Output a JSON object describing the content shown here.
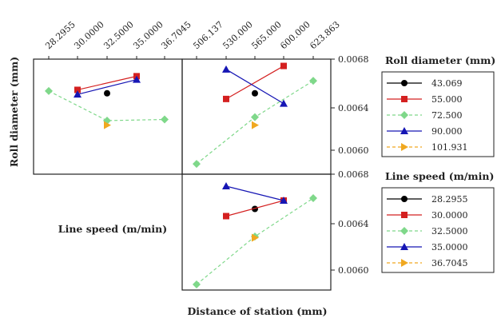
{
  "chart_data": {
    "type": "line",
    "title": "",
    "panel_frame_color": "#222222",
    "left_axis_label": "Roll diameter (mm)",
    "left_panel_label": "Line speed (m/min)",
    "bottom_axis_label": "Distance of station (mm)",
    "top_left_ticks": [
      "28.2955",
      "30.0000",
      "32.5000",
      "35.0000",
      "36.7045"
    ],
    "top_right_ticks": [
      "506.137",
      "530.000",
      "565.000",
      "600.000",
      "623.863"
    ],
    "right_ticks_upper": [
      "0.0068",
      "0.0064",
      "0.0060"
    ],
    "right_ticks_lower": [
      "0.0068",
      "0.0064",
      "0.0060"
    ],
    "x_line_speed": [
      28.2955,
      30.0,
      32.5,
      35.0,
      36.7045
    ],
    "x_distance": [
      506.137,
      530.0,
      565.0,
      600.0,
      623.863
    ],
    "ylim": [
      0.0058,
      0.0068
    ],
    "legend_roll": {
      "title": "Roll diameter (mm)",
      "entries": [
        {
          "label": "43.069",
          "color": "#000000",
          "marker": "circle",
          "dash": "solid"
        },
        {
          "label": "55.000",
          "color": "#d42020",
          "marker": "square",
          "dash": "solid"
        },
        {
          "label": "72.500",
          "color": "#7fd88a",
          "marker": "diamond",
          "dash": "dashed"
        },
        {
          "label": "90.000",
          "color": "#1616b4",
          "marker": "triangle-up",
          "dash": "solid"
        },
        {
          "label": "101.931",
          "color": "#f0a820",
          "marker": "triangle-right",
          "dash": "dashed"
        }
      ]
    },
    "legend_speed": {
      "title": "Line speed (m/min)",
      "entries": [
        {
          "label": "28.2955",
          "color": "#000000",
          "marker": "circle",
          "dash": "solid"
        },
        {
          "label": "30.0000",
          "color": "#d42020",
          "marker": "square",
          "dash": "solid"
        },
        {
          "label": "32.5000",
          "color": "#7fd88a",
          "marker": "diamond",
          "dash": "dashed"
        },
        {
          "label": "35.0000",
          "color": "#1616b4",
          "marker": "triangle-up",
          "dash": "solid"
        },
        {
          "label": "36.7045",
          "color": "#f0a820",
          "marker": "triangle-right",
          "dash": "dashed"
        }
      ]
    },
    "panels": [
      {
        "name": "roll-diameter-vs-line-speed",
        "x": "line_speed",
        "series": [
          {
            "legend": "roll",
            "index": 0,
            "points": [
              [
                32.5,
                0.0065
              ]
            ]
          },
          {
            "legend": "roll",
            "index": 1,
            "points": [
              [
                30.0,
                0.00653
              ],
              [
                35.0,
                0.00665
              ]
            ]
          },
          {
            "legend": "roll",
            "index": 2,
            "points": [
              [
                28.2955,
                0.00652
              ],
              [
                32.5,
                0.00626
              ],
              [
                36.7045,
                0.00627
              ]
            ]
          },
          {
            "legend": "roll",
            "index": 3,
            "points": [
              [
                30.0,
                0.00649
              ],
              [
                35.0,
                0.00662
              ]
            ]
          },
          {
            "legend": "roll",
            "index": 4,
            "points": [
              [
                32.5,
                0.00622
              ]
            ]
          }
        ]
      },
      {
        "name": "roll-diameter-vs-distance",
        "x": "distance",
        "series": [
          {
            "legend": "roll",
            "index": 0,
            "points": [
              [
                565.0,
                0.0065
              ]
            ]
          },
          {
            "legend": "roll",
            "index": 1,
            "points": [
              [
                530.0,
                0.00645
              ],
              [
                600.0,
                0.00674
              ]
            ]
          },
          {
            "legend": "roll",
            "index": 2,
            "points": [
              [
                506.137,
                0.00588
              ],
              [
                565.0,
                0.00629
              ],
              [
                623.863,
                0.00661
              ]
            ]
          },
          {
            "legend": "roll",
            "index": 3,
            "points": [
              [
                530.0,
                0.00671
              ],
              [
                600.0,
                0.00641
              ]
            ]
          },
          {
            "legend": "roll",
            "index": 4,
            "points": [
              [
                565.0,
                0.00622
              ]
            ]
          }
        ]
      },
      {
        "name": "line-speed-vs-distance",
        "x": "distance",
        "series": [
          {
            "legend": "speed",
            "index": 0,
            "points": [
              [
                565.0,
                0.00651
              ]
            ]
          },
          {
            "legend": "speed",
            "index": 1,
            "points": [
              [
                530.0,
                0.00645
              ],
              [
                600.0,
                0.00658
              ]
            ]
          },
          {
            "legend": "speed",
            "index": 2,
            "points": [
              [
                506.137,
                0.00588
              ],
              [
                565.0,
                0.00628
              ],
              [
                623.863,
                0.0066
              ]
            ]
          },
          {
            "legend": "speed",
            "index": 3,
            "points": [
              [
                530.0,
                0.0067
              ],
              [
                600.0,
                0.00658
              ]
            ]
          },
          {
            "legend": "speed",
            "index": 4,
            "points": [
              [
                565.0,
                0.00627
              ]
            ]
          }
        ]
      }
    ]
  }
}
